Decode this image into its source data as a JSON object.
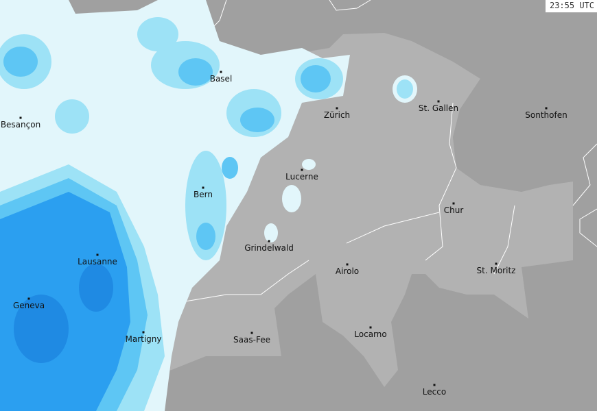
{
  "timestamp": "23:55 UTC",
  "colors": {
    "land": "#a0a0a0",
    "switzerland": "#b2b2b2",
    "rain_very_light": "#e2f6fb",
    "rain_light": "#9de2f6",
    "rain_moderate": "#5ec6f4",
    "rain_heavy": "#2b9ff0",
    "rain_very_heavy": "#1d85e0"
  },
  "cities": [
    {
      "name": "Basel"
    },
    {
      "name": "Zürich"
    },
    {
      "name": "St. Gallen"
    },
    {
      "name": "Sonthofen"
    },
    {
      "name": "Besançon"
    },
    {
      "name": "Lucerne"
    },
    {
      "name": "Bern"
    },
    {
      "name": "Chur"
    },
    {
      "name": "Grindelwald"
    },
    {
      "name": "Lausanne"
    },
    {
      "name": "Airolo"
    },
    {
      "name": "St. Moritz"
    },
    {
      "name": "Geneva"
    },
    {
      "name": "Locarno"
    },
    {
      "name": "Martigny"
    },
    {
      "name": "Saas-Fee"
    },
    {
      "name": "Lecco"
    }
  ]
}
